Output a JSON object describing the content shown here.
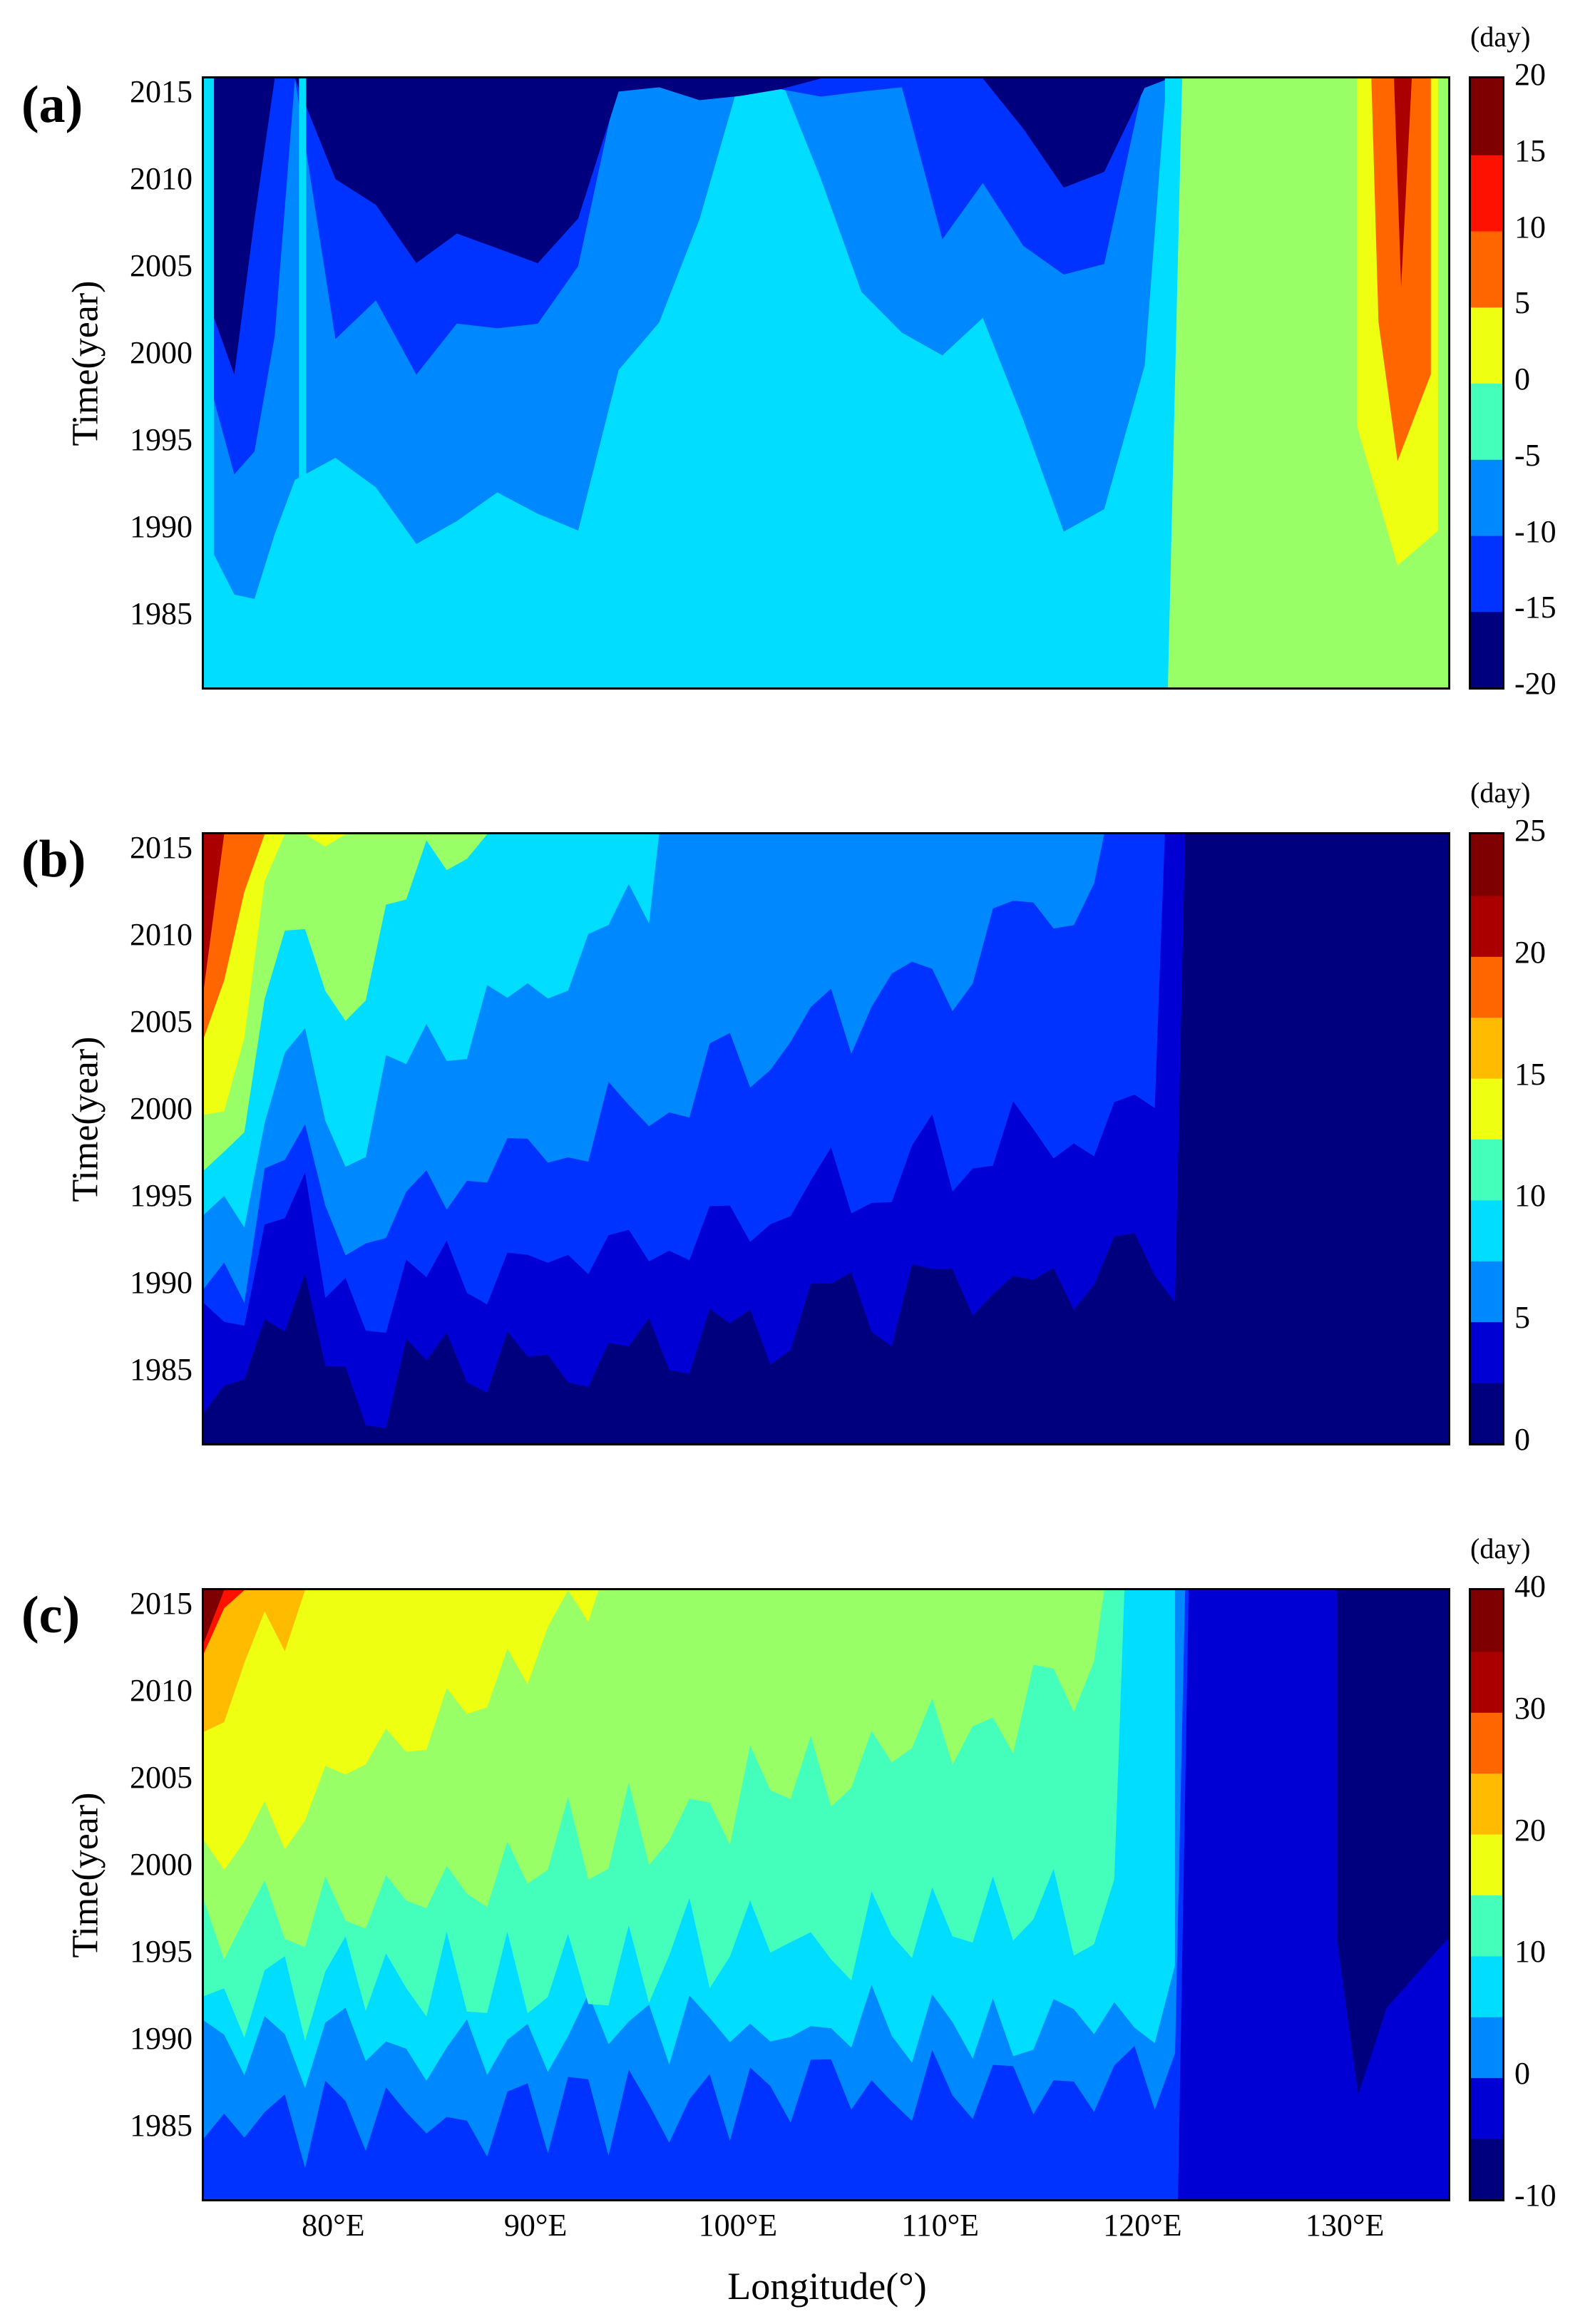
{
  "chart_data": [
    {
      "type": "heatmap",
      "panel_label": "(a)",
      "ylabel": "Time(year)",
      "colorbar_unit": "(day)",
      "y_ticks": [
        "2015",
        "2010",
        "2005",
        "2000",
        "1995",
        "1990",
        "1985"
      ],
      "colorbar_ticks": [
        "20",
        "15",
        "10",
        "5",
        "0",
        "-5",
        "-10",
        "-15",
        "-20"
      ],
      "colorbar_range": [
        -20,
        20
      ],
      "x_range_deg_e": [
        73.5,
        135.0
      ],
      "y_range_year": [
        1981,
        2016
      ],
      "levels": [
        -20,
        -15,
        -10,
        -5,
        0,
        5,
        10,
        15,
        20
      ],
      "columns": [
        {
          "lon": 74,
          "a": 1988,
          "b": 1998,
          "c": 2003
        },
        {
          "lon": 75,
          "a": 1987,
          "b": 1995,
          "c": 2000
        },
        {
          "lon": 76,
          "a": 1986,
          "b": 1996,
          "c": 2008
        },
        {
          "lon": 77,
          "a": 1990,
          "b": 2002,
          "c": 2017
        },
        {
          "lon": 78,
          "a": 1993,
          "b": 2017,
          "c": 2017
        },
        {
          "lon": 80,
          "a": 1994,
          "b": 2003,
          "c": 2010
        },
        {
          "lon": 82,
          "a": 1993,
          "b": 2004,
          "c": 2009
        },
        {
          "lon": 84,
          "a": 1991,
          "b": 2000,
          "c": 2005
        },
        {
          "lon": 86,
          "a": 1992,
          "b": 2002,
          "c": 2007
        },
        {
          "lon": 88,
          "a": 1993,
          "b": 2001,
          "c": 2006
        },
        {
          "lon": 90,
          "a": 1992,
          "b": 2002,
          "c": 2007
        },
        {
          "lon": 92,
          "a": 1992,
          "b": 2005,
          "c": 2010
        },
        {
          "lon": 94,
          "a": 2000,
          "b": 2017,
          "c": 2017
        },
        {
          "lon": 96,
          "a": 2003,
          "b": 2017,
          "c": 2017
        },
        {
          "lon": 98,
          "a": 2008,
          "b": 2017,
          "c": 2017
        },
        {
          "lon": 100,
          "a": 2017,
          "b": 2017,
          "c": 2017
        },
        {
          "lon": 102,
          "a": 2017,
          "b": 2017,
          "c": 2017
        },
        {
          "lon": 104,
          "a": 2010,
          "b": 2017,
          "c": 2017
        },
        {
          "lon": 106,
          "a": 2004,
          "b": 2017,
          "c": 2017
        },
        {
          "lon": 108,
          "a": 2001,
          "b": 2017,
          "c": 2017
        },
        {
          "lon": 110,
          "a": 2000,
          "b": 2009,
          "c": 2017
        },
        {
          "lon": 112,
          "a": 2002,
          "b": 2012,
          "c": 2017
        },
        {
          "lon": 114,
          "a": 1998,
          "b": 2008,
          "c": 2013
        },
        {
          "lon": 116,
          "a": 1992,
          "b": 2004,
          "c": 2009
        },
        {
          "lon": 118,
          "a": 1993,
          "b": 2005,
          "c": 2010
        },
        {
          "lon": 120,
          "a": 2001,
          "b": 2017,
          "c": 2017
        },
        {
          "lon": 121,
          "a": 2017,
          "b": 2017,
          "c": 2017
        }
      ],
      "green_region_lon": [
        121.5,
        135.0
      ],
      "warm_region_lon": [
        130.5,
        134.5
      ]
    },
    {
      "type": "heatmap",
      "panel_label": "(b)",
      "ylabel": "Time(year)",
      "colorbar_unit": "(day)",
      "y_ticks": [
        "2015",
        "2010",
        "2005",
        "2000",
        "1995",
        "1990",
        "1985"
      ],
      "colorbar_ticks": [
        "25",
        "20",
        "15",
        "10",
        "5",
        "0"
      ],
      "colorbar_range": [
        0,
        25
      ],
      "x_range_deg_e": [
        73.5,
        135.0
      ],
      "y_range_year": [
        1981,
        2016
      ],
      "levels": [
        0,
        2.5,
        5,
        7.5,
        10,
        12.5,
        15,
        17.5,
        20,
        22.5,
        25
      ]
    },
    {
      "type": "heatmap",
      "panel_label": "(c)",
      "ylabel": "Time(year)",
      "xlabel": "Longitude(°)",
      "colorbar_unit": "(day)",
      "y_ticks": [
        "2015",
        "2010",
        "2005",
        "2000",
        "1995",
        "1990",
        "1985"
      ],
      "x_ticks": [
        "80°E",
        "90°E",
        "100°E",
        "110°E",
        "120°E",
        "130°E"
      ],
      "colorbar_ticks": [
        "40",
        "30",
        "20",
        "10",
        "0",
        "-10"
      ],
      "colorbar_range": [
        -10,
        40
      ],
      "x_range_deg_e": [
        73.5,
        135.0
      ],
      "y_range_year": [
        1981,
        2016
      ],
      "levels": [
        -10,
        -5,
        0,
        5,
        10,
        15,
        20,
        25,
        30,
        35,
        40
      ]
    }
  ],
  "colors": {
    "jet": [
      "#00007f",
      "#0000d5",
      "#0033ff",
      "#0088ff",
      "#00ddff",
      "#44ffbb",
      "#99ff66",
      "#eeff11",
      "#ffbb00",
      "#ff6600",
      "#ff1100",
      "#aa0000",
      "#7f0000"
    ]
  }
}
